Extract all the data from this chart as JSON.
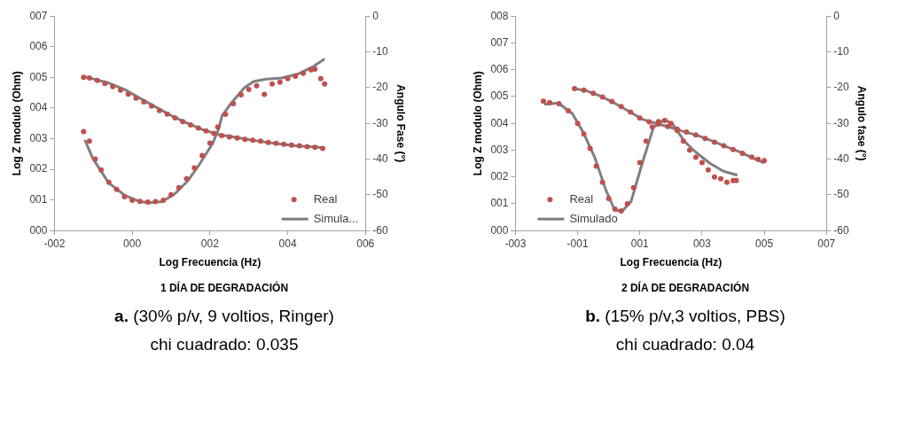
{
  "chart_data": [
    {
      "type": "scatter",
      "title": "1 DÍA DE DEGRADACIÓN",
      "xlabel": "Log Frecuencia (Hz)",
      "ylabel": "Log Z modulo (Ohm)",
      "y2label": "Angulo Fase (°)",
      "xlim": [
        -2,
        6
      ],
      "xticks": [
        {
          "value": -2,
          "label": "-002"
        },
        {
          "value": 0,
          "label": "000"
        },
        {
          "value": 2,
          "label": "002"
        },
        {
          "value": 4,
          "label": "004"
        },
        {
          "value": 6,
          "label": "006"
        }
      ],
      "ylim": [
        0,
        7
      ],
      "yticks": [
        {
          "value": 0,
          "label": "000"
        },
        {
          "value": 1,
          "label": "001"
        },
        {
          "value": 2,
          "label": "002"
        },
        {
          "value": 3,
          "label": "003"
        },
        {
          "value": 4,
          "label": "004"
        },
        {
          "value": 5,
          "label": "005"
        },
        {
          "value": 6,
          "label": "006"
        },
        {
          "value": 7,
          "label": "007"
        }
      ],
      "y2lim": [
        -60,
        0
      ],
      "y2ticks": [
        -60,
        -50,
        -40,
        -30,
        -20,
        -10,
        0
      ],
      "grid": false,
      "legend": "bottom right",
      "annotations": [
        "a. (30% p/v, 9 voltios, Ringer)",
        "chi cuadrado: 0.035"
      ],
      "series": [
        {
          "name": "Real",
          "type": "scatter",
          "marker": "circle",
          "color": "#c0504d",
          "x": [
            -1.25,
            -1.1,
            -0.9,
            -0.7,
            -0.5,
            -0.3,
            -0.1,
            0.1,
            0.3,
            0.5,
            0.7,
            0.9,
            1.1,
            1.3,
            1.5,
            1.7,
            1.9,
            2.1,
            2.3,
            2.5,
            2.7,
            2.9,
            3.1,
            3.3,
            3.5,
            3.7,
            3.9,
            4.1,
            4.3,
            4.5,
            4.7,
            4.9
          ],
          "values": [
            5.0,
            4.98,
            4.9,
            4.8,
            4.7,
            4.58,
            4.45,
            4.32,
            4.2,
            4.06,
            3.92,
            3.8,
            3.68,
            3.56,
            3.45,
            3.35,
            3.25,
            3.17,
            3.1,
            3.06,
            3.02,
            2.98,
            2.95,
            2.92,
            2.88,
            2.85,
            2.82,
            2.79,
            2.77,
            2.74,
            2.72,
            2.68
          ]
        },
        {
          "type": "scatter",
          "marker": "circle",
          "color": "#c0504d",
          "axis": "y2",
          "x": [
            -1.25,
            -1.1,
            -0.95,
            -0.8,
            -0.6,
            -0.4,
            -0.2,
            0,
            0.2,
            0.4,
            0.6,
            0.8,
            1.0,
            1.2,
            1.4,
            1.6,
            1.8,
            2.0,
            2.2,
            2.4,
            2.6,
            2.8,
            3.0,
            3.2,
            3.4,
            3.6,
            3.8,
            4.0,
            4.2,
            4.4,
            4.6,
            4.7,
            4.85,
            4.95
          ],
          "values": [
            -32.3,
            -35,
            -40,
            -43,
            -46.5,
            -48.5,
            -50.5,
            -51.5,
            -51.8,
            -52,
            -51.9,
            -51.5,
            -50,
            -48,
            -45.5,
            -42.5,
            -39,
            -35.5,
            -31,
            -27.5,
            -24.5,
            -22,
            -20.5,
            -19.5,
            -21.9,
            -19,
            -18.5,
            -17.5,
            -16.8,
            -16,
            -15,
            -14.8,
            -17.5,
            -19
          ]
        },
        {
          "name": "Simula...",
          "type": "line",
          "marker": "none",
          "color": "#7f7f7f",
          "x": [
            -1.22,
            -0.61,
            -0.2,
            0.2,
            0.61,
            1.01,
            1.42,
            1.82,
            2.23,
            2.64,
            3.04,
            3.45,
            3.85,
            4.26,
            4.66,
            4.95
          ],
          "values": [
            5.02,
            4.82,
            4.61,
            4.32,
            4.03,
            3.75,
            3.5,
            3.29,
            3.13,
            3.05,
            2.96,
            2.88,
            2.82,
            2.76,
            2.73,
            2.7
          ]
        },
        {
          "type": "line",
          "marker": "none",
          "color": "#7f7f7f",
          "axis": "y2",
          "x": [
            -1.22,
            -1.01,
            -0.61,
            -0.2,
            0.2,
            0.45,
            0.77,
            1.09,
            1.42,
            1.74,
            2.07,
            2.23,
            2.31,
            2.55,
            2.88,
            3.12,
            3.45,
            3.85,
            4.26,
            4.66,
            4.95
          ],
          "values": [
            -34.6,
            -39.9,
            -46.6,
            -50.1,
            -51.9,
            -52.2,
            -51.9,
            -49.8,
            -46.2,
            -41.3,
            -35.6,
            -31.4,
            -27.9,
            -24.3,
            -20.1,
            -18.3,
            -17.6,
            -17.3,
            -16.2,
            -14.1,
            -12
          ]
        }
      ]
    },
    {
      "type": "scatter",
      "title": "2 DÍA DE DEGRADACIÓN",
      "xlabel": "Log Frecuencia (Hz)",
      "ylabel": "Log Z modulo (Ohm)",
      "y2label": "Angulo fase (°)",
      "xlim": [
        -3,
        7
      ],
      "xticks": [
        {
          "value": -3,
          "label": "-003"
        },
        {
          "value": -1,
          "label": "-001"
        },
        {
          "value": 1,
          "label": "001"
        },
        {
          "value": 3,
          "label": "003"
        },
        {
          "value": 5,
          "label": "005"
        },
        {
          "value": 7,
          "label": "007"
        }
      ],
      "ylim": [
        0,
        8
      ],
      "yticks": [
        {
          "value": 0,
          "label": "000"
        },
        {
          "value": 1,
          "label": "001"
        },
        {
          "value": 2,
          "label": "002"
        },
        {
          "value": 3,
          "label": "003"
        },
        {
          "value": 4,
          "label": "004"
        },
        {
          "value": 5,
          "label": "005"
        },
        {
          "value": 6,
          "label": "006"
        },
        {
          "value": 7,
          "label": "007"
        },
        {
          "value": 8,
          "label": "008"
        }
      ],
      "y2lim": [
        -60,
        0
      ],
      "y2ticks": [
        -60,
        -50,
        -40,
        -30,
        -20,
        -10,
        0
      ],
      "grid": false,
      "legend": "bottom left",
      "annotations": [
        "b. (15% p/v,3 voltios, PBS)",
        "chi cuadrado: 0.04"
      ],
      "series": [
        {
          "name": "Real",
          "type": "scatter",
          "marker": "circle",
          "color": "#c0504d",
          "x": [
            -1.1,
            -0.8,
            -0.5,
            -0.2,
            0.1,
            0.4,
            0.7,
            1.0,
            1.3,
            1.6,
            1.9,
            2.2,
            2.5,
            2.8,
            3.1,
            3.4,
            3.7,
            4.0,
            4.3,
            4.6,
            4.8,
            5.0
          ],
          "values": [
            5.3,
            5.24,
            5.12,
            4.98,
            4.82,
            4.63,
            4.42,
            4.2,
            4.06,
            3.97,
            3.88,
            3.78,
            3.68,
            3.57,
            3.44,
            3.3,
            3.16,
            3.02,
            2.88,
            2.74,
            2.66,
            2.61
          ]
        },
        {
          "type": "scatter",
          "marker": "circle",
          "color": "#c0504d",
          "axis": "y2",
          "x": [
            -2.1,
            -1.9,
            -1.6,
            -1.3,
            -1.0,
            -0.8,
            -0.6,
            -0.4,
            -0.2,
            0,
            0.2,
            0.4,
            0.6,
            0.8,
            1.0,
            1.2,
            1.4,
            1.6,
            1.8,
            2.0,
            2.2,
            2.4,
            2.6,
            2.8,
            3.0,
            3.2,
            3.4,
            3.6,
            3.8,
            4.0,
            4.1
          ],
          "values": [
            -23.8,
            -24.2,
            -24.5,
            -26.5,
            -30,
            -33,
            -37,
            -42,
            -46.5,
            -51,
            -54,
            -54.5,
            -52.5,
            -48,
            -41,
            -35,
            -31,
            -29.5,
            -29.2,
            -30,
            -32,
            -35,
            -37.5,
            -39.5,
            -41,
            -43,
            -45,
            -45.5,
            -46.5,
            -46,
            -46
          ]
        },
        {
          "name": "Simulado",
          "type": "line",
          "marker": "none",
          "color": "#7f7f7f",
          "x": [
            -1.13,
            -0.72,
            -0.27,
            0.18,
            0.63,
            1.08,
            1.53,
            1.98,
            2.43,
            2.88,
            3.33,
            3.78,
            4.23,
            4.68,
            5.0
          ],
          "values": [
            5.3,
            5.22,
            5.02,
            4.76,
            4.46,
            4.15,
            4.0,
            3.85,
            3.69,
            3.54,
            3.34,
            3.13,
            2.93,
            2.68,
            2.52
          ]
        },
        {
          "type": "line",
          "marker": "none",
          "color": "#7f7f7f",
          "axis": "y2",
          "x": [
            -2.07,
            -1.62,
            -1.17,
            -0.81,
            -0.45,
            -0.09,
            0.18,
            0.41,
            0.72,
            1.08,
            1.44,
            1.8,
            2.07,
            2.43,
            2.79,
            3.24,
            3.69,
            4.14
          ],
          "values": [
            -24.7,
            -24.3,
            -27.3,
            -32.7,
            -39.5,
            -48.7,
            -54,
            -54.8,
            -51.8,
            -41.1,
            -31.1,
            -28.9,
            -30.4,
            -35,
            -38,
            -41.1,
            -43.4,
            -44.5
          ]
        }
      ]
    }
  ]
}
